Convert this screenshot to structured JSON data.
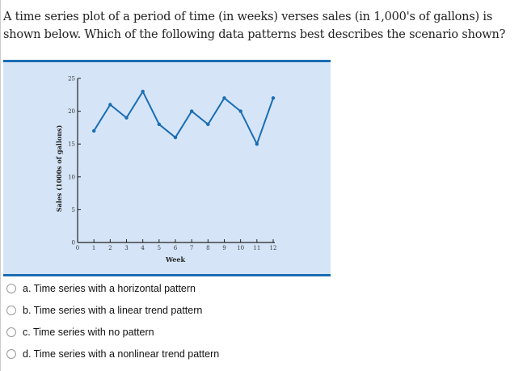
{
  "question": "A time series plot of a period of time (in weeks) verses sales (in 1,000's of gallons) is shown below. Which of the following data patterns best describes the scenario shown?",
  "options": [
    "a. Time series with a horizontal pattern",
    "b. Time series with a linear trend pattern",
    "c. Time series with no pattern",
    "d. Time series with a nonlinear trend pattern"
  ],
  "colors": {
    "line": "#1a6db3",
    "panel": "#d5e5f7"
  },
  "chart_data": {
    "type": "line",
    "title": "",
    "xlabel": "Week",
    "ylabel": "Sales (1000s of gallons)",
    "x": [
      1,
      2,
      3,
      4,
      5,
      6,
      7,
      8,
      9,
      10,
      11,
      12
    ],
    "values": [
      17,
      21,
      19,
      23,
      18,
      16,
      20,
      18,
      22,
      20,
      15,
      22
    ],
    "xlim": [
      0,
      12
    ],
    "ylim": [
      0,
      25
    ],
    "xticks": [
      0,
      1,
      2,
      3,
      4,
      5,
      6,
      7,
      8,
      9,
      10,
      11,
      12
    ],
    "yticks": [
      0,
      5,
      10,
      15,
      20,
      25
    ],
    "grid": false
  }
}
